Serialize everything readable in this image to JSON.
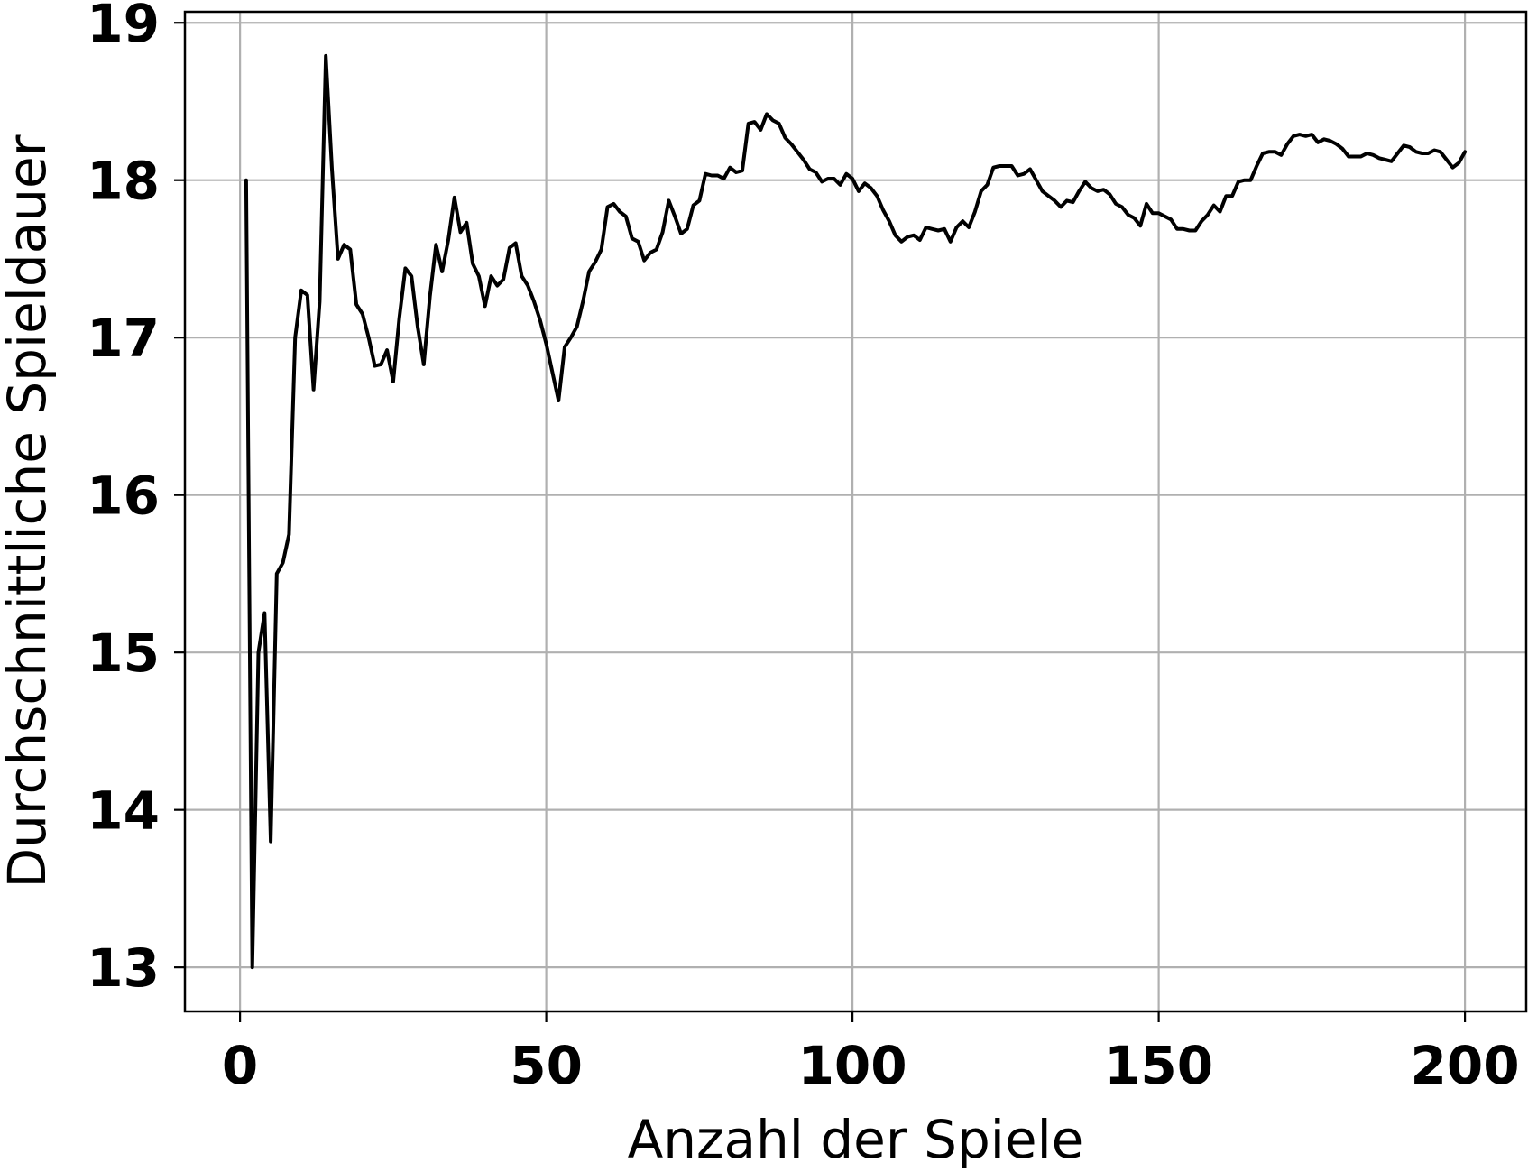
{
  "chart_data": {
    "type": "line",
    "title": "",
    "xlabel": "Anzahl der Spiele",
    "ylabel": "Durchschnittliche Spieldauer",
    "xlim": [
      -9,
      210
    ],
    "ylim": [
      12.72,
      19.07
    ],
    "xticks": [
      0,
      50,
      100,
      150,
      200
    ],
    "xtick_labels": [
      "0",
      "50",
      "100",
      "150",
      "200"
    ],
    "yticks": [
      13,
      14,
      15,
      16,
      17,
      18,
      19
    ],
    "ytick_labels": [
      "13",
      "14",
      "15",
      "16",
      "17",
      "18",
      "19"
    ],
    "grid": true,
    "legend": "none",
    "line_color": "#000000",
    "series": [
      {
        "x": [
          1,
          2,
          3,
          4,
          5,
          6,
          7,
          8,
          9,
          10,
          11,
          12,
          13,
          14,
          15,
          16,
          17,
          18,
          19,
          20,
          21,
          22,
          23,
          24,
          25,
          26,
          27,
          28,
          29,
          30,
          31,
          32,
          33,
          34,
          35,
          36,
          37,
          38,
          39,
          40,
          41,
          42,
          43,
          44,
          45,
          46,
          47,
          48,
          49,
          50,
          51,
          52,
          53,
          54,
          55,
          56,
          57,
          58,
          59,
          60,
          61,
          62,
          63,
          64,
          65,
          66,
          67,
          68,
          69,
          70,
          71,
          72,
          73,
          74,
          75,
          76,
          77,
          78,
          79,
          80,
          81,
          82,
          83,
          84,
          85,
          86,
          87,
          88,
          89,
          90,
          91,
          92,
          93,
          94,
          95,
          96,
          97,
          98,
          99,
          100,
          101,
          102,
          103,
          104,
          105,
          106,
          107,
          108,
          109,
          110,
          111,
          112,
          113,
          114,
          115,
          116,
          117,
          118,
          119,
          120,
          121,
          122,
          123,
          124,
          125,
          126,
          127,
          128,
          129,
          130,
          131,
          132,
          133,
          134,
          135,
          136,
          137,
          138,
          139,
          140,
          141,
          142,
          143,
          144,
          145,
          146,
          147,
          148,
          149,
          150,
          151,
          152,
          153,
          154,
          155,
          156,
          157,
          158,
          159,
          160,
          161,
          162,
          163,
          164,
          165,
          166,
          167,
          168,
          169,
          170,
          171,
          172,
          173,
          174,
          175,
          176,
          177,
          178,
          179,
          180,
          181,
          182,
          183,
          184,
          185,
          186,
          187,
          188,
          189,
          190,
          191,
          192,
          193,
          194,
          195,
          196,
          197,
          198,
          199,
          200
        ],
        "values": [
          18.0,
          13.0,
          15.0,
          15.25,
          13.8,
          15.5,
          15.57,
          15.75,
          17.0,
          17.3,
          17.27,
          16.67,
          17.23,
          18.79,
          18.07,
          17.5,
          17.59,
          17.56,
          17.21,
          17.15,
          17.0,
          16.82,
          16.83,
          16.92,
          16.72,
          17.12,
          17.44,
          17.39,
          17.07,
          16.83,
          17.26,
          17.59,
          17.42,
          17.62,
          17.89,
          17.67,
          17.73,
          17.47,
          17.39,
          17.2,
          17.39,
          17.33,
          17.37,
          17.57,
          17.6,
          17.39,
          17.33,
          17.23,
          17.11,
          16.96,
          16.78,
          16.6,
          16.94,
          17.0,
          17.07,
          17.23,
          17.42,
          17.48,
          17.56,
          17.83,
          17.85,
          17.8,
          17.77,
          17.63,
          17.61,
          17.49,
          17.54,
          17.56,
          17.67,
          17.87,
          17.77,
          17.66,
          17.69,
          17.84,
          17.87,
          18.04,
          18.03,
          18.03,
          18.01,
          18.08,
          18.05,
          18.06,
          18.36,
          18.37,
          18.32,
          18.42,
          18.38,
          18.36,
          18.27,
          18.23,
          18.18,
          18.13,
          18.07,
          18.05,
          17.99,
          18.01,
          18.01,
          17.97,
          18.04,
          18.01,
          17.93,
          17.98,
          17.95,
          17.9,
          17.81,
          17.74,
          17.65,
          17.61,
          17.64,
          17.65,
          17.62,
          17.7,
          17.69,
          17.68,
          17.69,
          17.61,
          17.7,
          17.74,
          17.7,
          17.8,
          17.93,
          17.97,
          18.08,
          18.09,
          18.09,
          18.09,
          18.03,
          18.04,
          18.07,
          18.0,
          17.93,
          17.9,
          17.87,
          17.83,
          17.87,
          17.86,
          17.93,
          17.99,
          17.95,
          17.93,
          17.94,
          17.91,
          17.85,
          17.83,
          17.78,
          17.76,
          17.71,
          17.85,
          17.79,
          17.79,
          17.77,
          17.75,
          17.69,
          17.69,
          17.68,
          17.68,
          17.74,
          17.78,
          17.84,
          17.8,
          17.9,
          17.9,
          17.99,
          18.0,
          18.0,
          18.09,
          18.17,
          18.18,
          18.18,
          18.16,
          18.23,
          18.28,
          18.29,
          18.28,
          18.29,
          18.24,
          18.26,
          18.25,
          18.23,
          18.2,
          18.15,
          18.15,
          18.15,
          18.17,
          18.16,
          18.14,
          18.13,
          18.12,
          18.17,
          18.22,
          18.21,
          18.18,
          18.17,
          18.17,
          18.19,
          18.18,
          18.13,
          18.08,
          18.11,
          18.18
        ]
      }
    ]
  }
}
